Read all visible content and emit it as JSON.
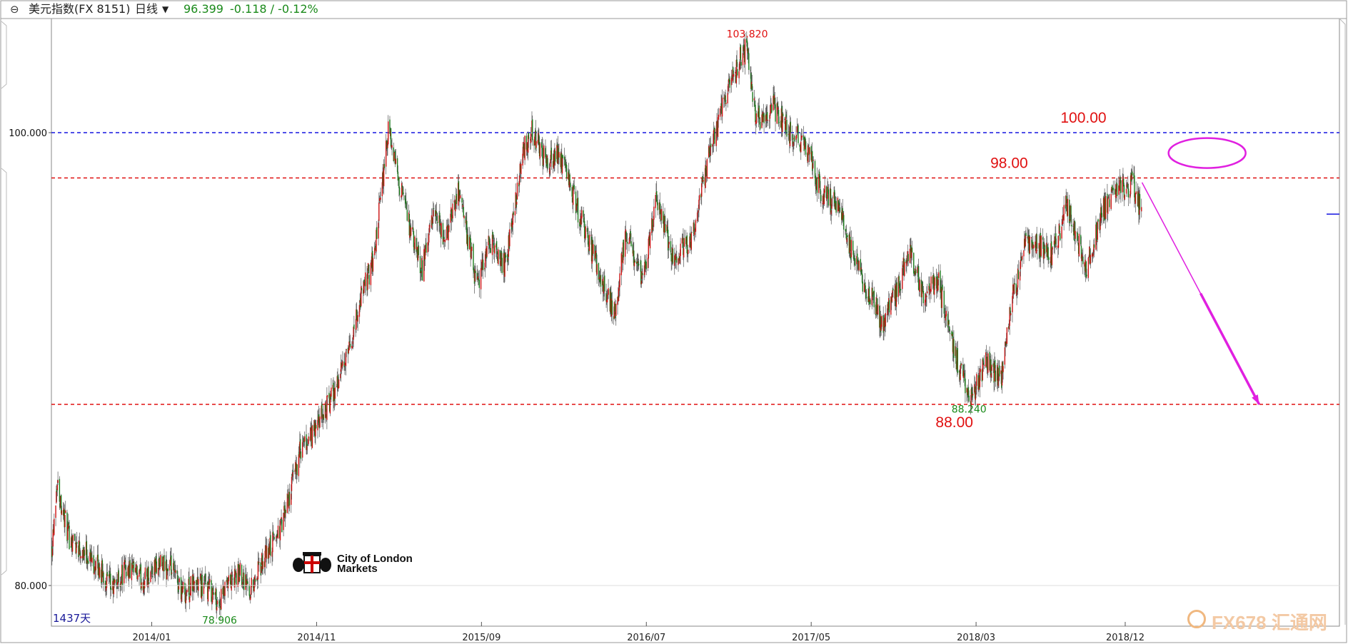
{
  "header": {
    "icon": "link-icon",
    "title": "美元指数(FX 8151)",
    "period": "日线",
    "price": "96.399",
    "change": "-0.118 / -0.12%"
  },
  "chart_data": {
    "type": "candlestick",
    "yaxis": {
      "ticks": [
        "100.000",
        "80.000"
      ],
      "ylim": [
        79.0,
        103.9
      ]
    },
    "xaxis": {
      "ticks": [
        "2014/01",
        "2014/11",
        "2015/09",
        "2016/07",
        "2017/05",
        "2018/03",
        "2018/12"
      ]
    },
    "colors": {
      "up": "#cc1111",
      "down": "#1a7a1a",
      "wick": "#555555"
    },
    "series": [
      {
        "values": [
          [
            "2013-07-01",
            81.8
          ],
          [
            "2013-07-10",
            84.6
          ],
          [
            "2013-07-31",
            82.2
          ],
          [
            "2013-08-31",
            81.5
          ],
          [
            "2013-09-30",
            80.6
          ],
          [
            "2013-10-20",
            79.8
          ],
          [
            "2013-11-15",
            80.8
          ],
          [
            "2013-12-15",
            80.2
          ],
          [
            "2014-01-10",
            80.9
          ],
          [
            "2014-02-05",
            80.7
          ],
          [
            "2014-03-01",
            79.7
          ],
          [
            "2014-03-25",
            80.1
          ],
          [
            "2014-04-20",
            79.8
          ],
          [
            "2014-05-06",
            79.2
          ],
          [
            "2014-05-25",
            80.1
          ],
          [
            "2014-06-15",
            80.6
          ],
          [
            "2014-07-01",
            79.8
          ],
          [
            "2014-07-31",
            81.3
          ],
          [
            "2014-08-31",
            82.8
          ],
          [
            "2014-09-30",
            85.8
          ],
          [
            "2014-10-31",
            86.9
          ],
          [
            "2014-11-30",
            88.4
          ],
          [
            "2014-12-31",
            90.3
          ],
          [
            "2015-01-20",
            92.6
          ],
          [
            "2015-02-15",
            94.5
          ],
          [
            "2015-03-13",
            100.0
          ],
          [
            "2015-04-01",
            98.0
          ],
          [
            "2015-04-30",
            95.0
          ],
          [
            "2015-05-15",
            94.0
          ],
          [
            "2015-06-05",
            96.4
          ],
          [
            "2015-06-25",
            95.2
          ],
          [
            "2015-07-20",
            97.6
          ],
          [
            "2015-08-24",
            93.2
          ],
          [
            "2015-09-15",
            95.2
          ],
          [
            "2015-10-15",
            94.1
          ],
          [
            "2015-11-15",
            99.0
          ],
          [
            "2015-12-02",
            100.2
          ],
          [
            "2015-12-31",
            98.6
          ],
          [
            "2016-01-20",
            99.2
          ],
          [
            "2016-02-20",
            97.0
          ],
          [
            "2016-03-20",
            95.0
          ],
          [
            "2016-05-03",
            92.0
          ],
          [
            "2016-05-25",
            95.6
          ],
          [
            "2016-06-24",
            93.5
          ],
          [
            "2016-07-20",
            97.1
          ],
          [
            "2016-08-20",
            94.5
          ],
          [
            "2016-09-20",
            95.3
          ],
          [
            "2016-10-20",
            98.5
          ],
          [
            "2016-11-20",
            101.3
          ],
          [
            "2016-12-20",
            103.2
          ],
          [
            "2017-01-03",
            103.82
          ],
          [
            "2017-01-20",
            100.5
          ],
          [
            "2017-02-20",
            101.2
          ],
          [
            "2017-03-20",
            100.0
          ],
          [
            "2017-04-20",
            99.5
          ],
          [
            "2017-05-20",
            97.3
          ],
          [
            "2017-06-20",
            96.8
          ],
          [
            "2017-07-20",
            94.2
          ],
          [
            "2017-08-25",
            92.5
          ],
          [
            "2017-09-08",
            91.5
          ],
          [
            "2017-10-10",
            93.2
          ],
          [
            "2017-10-27",
            94.8
          ],
          [
            "2017-11-25",
            92.9
          ],
          [
            "2017-12-20",
            93.5
          ],
          [
            "2018-01-20",
            90.3
          ],
          [
            "2018-02-16",
            88.24
          ],
          [
            "2018-03-20",
            89.8
          ],
          [
            "2018-04-17",
            89.2
          ],
          [
            "2018-05-01",
            92.0
          ],
          [
            "2018-05-29",
            95.0
          ],
          [
            "2018-06-20",
            95.1
          ],
          [
            "2018-07-20",
            94.6
          ],
          [
            "2018-08-15",
            96.8
          ],
          [
            "2018-09-20",
            94.0
          ],
          [
            "2018-10-20",
            96.5
          ],
          [
            "2018-11-15",
            97.5
          ],
          [
            "2018-12-14",
            97.7
          ],
          [
            "2018-12-31",
            96.4
          ]
        ]
      }
    ],
    "hlines": [
      {
        "value": 100.0,
        "color": "#1515e0"
      },
      {
        "value": 98.0,
        "color": "#e01010"
      },
      {
        "value": 88.0,
        "color": "#e01010"
      }
    ],
    "annotations": [
      {
        "text": "103.820",
        "x": "2017-01-03",
        "y": 103.82,
        "color": "#e01010",
        "kind": "high"
      },
      {
        "text": "88.240",
        "x": "2018-02-16",
        "y": 88.24,
        "color": "#1a8a1a",
        "kind": "low"
      },
      {
        "text": "78.906",
        "x": "2014-05-06",
        "y": 78.906,
        "color": "#1a8a1a",
        "kind": "low"
      },
      {
        "text": "100.00",
        "x": "2018-09-15",
        "y": 100.0,
        "color": "#e01010",
        "kind": "level"
      },
      {
        "text": "98.00",
        "x": "2018-05-01",
        "y": 98.0,
        "color": "#e01010",
        "kind": "level"
      },
      {
        "text": "88.00",
        "x": "2018-01-20",
        "y": 88.0,
        "color": "#e01010",
        "kind": "level"
      }
    ],
    "forecast_arrow": {
      "from": [
        "2019-01-01",
        97.8
      ],
      "to": [
        "2019-08-05",
        88.0
      ],
      "color": "#e020e0"
    },
    "target_ellipse": {
      "x": "2019-05-01",
      "y": 99.1,
      "color": "#e020e0"
    },
    "days_label": "1437天",
    "right_marker": "96.399"
  },
  "watermarks": {
    "city_of_london": [
      "City of London",
      "Markets"
    ],
    "fx678": "FX678 汇通网"
  }
}
